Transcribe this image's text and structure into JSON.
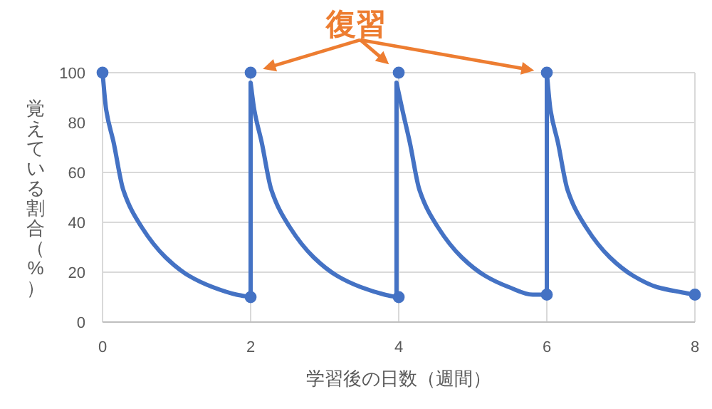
{
  "chart_data": {
    "type": "line",
    "xlabel": "学習後の日数（週間）",
    "ylabel": "覚えている割合（%）",
    "annotations": [
      "復習"
    ],
    "xlim": [
      0,
      8
    ],
    "ylim": [
      0,
      100
    ],
    "xticks": [
      0,
      2,
      4,
      6,
      8
    ],
    "yticks": [
      0,
      20,
      40,
      60,
      80,
      100
    ],
    "grid": true,
    "series": [
      {
        "color": "#4472c4",
        "marker": "none",
        "x": [
          0,
          0.05,
          0.15,
          0.28,
          0.53,
          0.85,
          1.17,
          1.49,
          1.81,
          2,
          2,
          2.05,
          2.15,
          2.28,
          2.53,
          2.85,
          3.17,
          3.49,
          3.81,
          3.97,
          3.97,
          4.05,
          4.15,
          4.28,
          4.53,
          4.85,
          5.17,
          5.49,
          5.81,
          6,
          6,
          6.05,
          6.15,
          6.28,
          6.53,
          6.85,
          7.17,
          7.49,
          7.81,
          8
        ],
        "values": [
          100,
          85,
          72,
          53,
          38,
          26,
          18.5,
          14,
          11,
          10,
          96,
          85,
          72,
          53,
          38,
          26,
          18.5,
          14,
          11,
          10,
          96,
          85,
          72,
          53,
          38,
          26,
          18.5,
          14,
          11,
          11,
          100,
          85,
          72,
          53,
          38,
          26,
          18.5,
          14,
          12,
          11
        ]
      },
      {
        "type": "scatter",
        "color": "#4472c4",
        "marker": "circle",
        "x": [
          0,
          2,
          4,
          6,
          8
        ],
        "values": [
          100,
          10,
          10,
          11,
          11
        ]
      },
      {
        "type": "scatter",
        "color": "#4472c4",
        "marker": "circle",
        "x": [
          2,
          4,
          6
        ],
        "values": [
          100,
          100,
          100
        ]
      }
    ]
  }
}
